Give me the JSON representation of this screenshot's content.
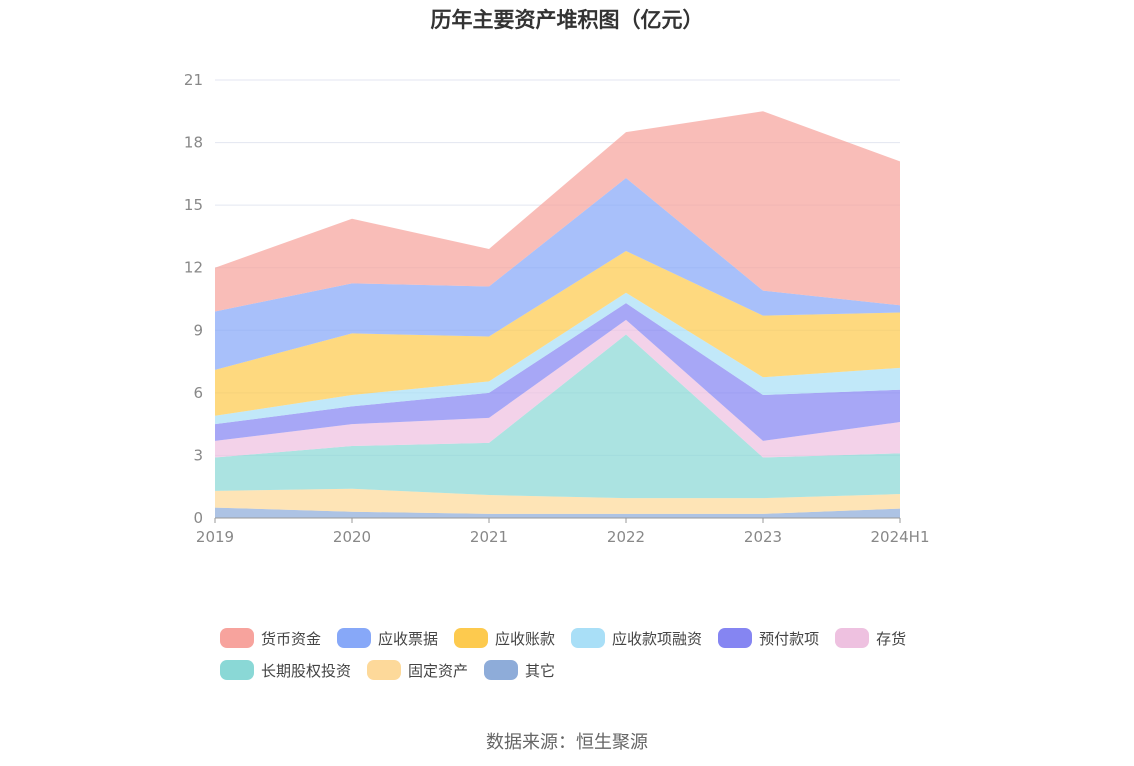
{
  "chart_data": {
    "type": "area",
    "stacked": true,
    "title": "历年主要资产堆积图（亿元）",
    "categories": [
      "2019",
      "2020",
      "2021",
      "2022",
      "2023",
      "2024H1"
    ],
    "ylim": [
      0,
      21
    ],
    "yticks": [
      0,
      3,
      6,
      9,
      12,
      15,
      18,
      21
    ],
    "grid": true,
    "legend_position": "bottom",
    "series": [
      {
        "name": "其它",
        "color": "#8eacd9",
        "values": [
          0.5,
          0.3,
          0.2,
          0.2,
          0.2,
          0.45
        ]
      },
      {
        "name": "固定资产",
        "color": "#fdd99a",
        "values": [
          0.8,
          1.1,
          0.9,
          0.75,
          0.75,
          0.7
        ]
      },
      {
        "name": "长期股权投资",
        "color": "#8ad8d6",
        "values": [
          1.6,
          2.05,
          2.5,
          7.85,
          1.95,
          1.95
        ]
      },
      {
        "name": "存货",
        "color": "#eec1e0",
        "values": [
          0.8,
          1.05,
          1.2,
          0.7,
          0.8,
          1.5
        ]
      },
      {
        "name": "预付款项",
        "color": "#8585f2",
        "values": [
          0.8,
          0.85,
          1.2,
          0.8,
          2.2,
          1.55
        ]
      },
      {
        "name": "应收款项融资",
        "color": "#a9dff7",
        "values": [
          0.4,
          0.55,
          0.55,
          0.5,
          0.85,
          1.05
        ]
      },
      {
        "name": "应收账款",
        "color": "#fdca4e",
        "values": [
          2.2,
          2.95,
          2.15,
          2.0,
          2.95,
          2.65
        ]
      },
      {
        "name": "应收票据",
        "color": "#87a8f8",
        "values": [
          2.8,
          2.4,
          2.4,
          3.5,
          1.2,
          0.35
        ]
      },
      {
        "name": "货币资金",
        "color": "#f7a39d",
        "values": [
          2.1,
          3.1,
          1.8,
          2.2,
          8.6,
          6.9
        ]
      }
    ]
  },
  "legend_order": [
    "货币资金",
    "应收票据",
    "应收账款",
    "应收款项融资",
    "预付款项",
    "存货",
    "长期股权投资",
    "固定资产",
    "其它"
  ],
  "source": "数据来源：恒生聚源"
}
